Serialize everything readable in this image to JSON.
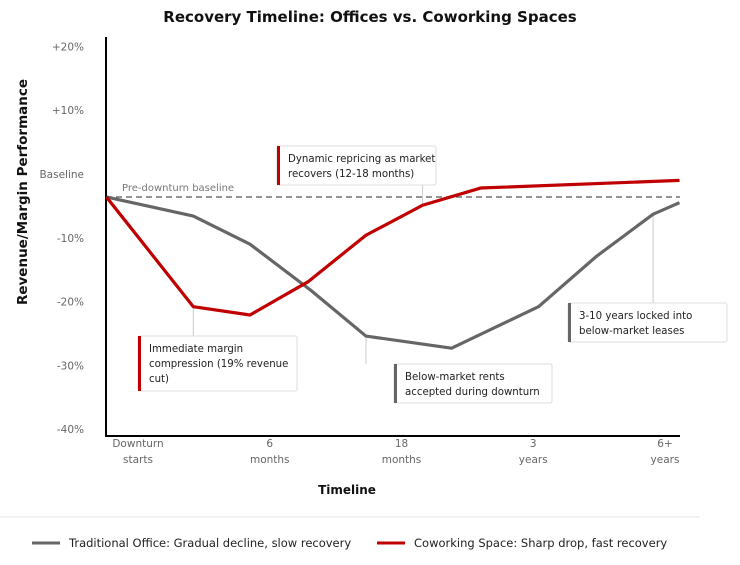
{
  "chart_data": {
    "type": "line",
    "title": "Recovery Timeline: Offices vs. Coworking Spaces",
    "xlabel": "Timeline",
    "ylabel": "Revenue/Margin Performance",
    "ylim": [
      -40,
      20
    ],
    "y_ticks": [
      {
        "value": 20,
        "label": "+20%"
      },
      {
        "value": 10,
        "label": "+10%"
      },
      {
        "value": 0,
        "label": "Baseline"
      },
      {
        "value": -10,
        "label": "-10%"
      },
      {
        "value": -20,
        "label": "-20%"
      },
      {
        "value": -30,
        "label": "-30%"
      },
      {
        "value": -40,
        "label": "-40%"
      }
    ],
    "categories": [
      [
        "Downturn",
        "starts"
      ],
      [
        "6",
        "months"
      ],
      [
        "18",
        "months"
      ],
      [
        "3",
        "years"
      ],
      [
        "6+",
        "years"
      ]
    ],
    "grid": false,
    "baseline": {
      "value": -3.6,
      "label": "Pre-downturn baseline"
    },
    "series": [
      {
        "name": "Traditional Office: Gradual decline, slow recovery",
        "color": "#666666",
        "points": [
          [
            -0.24,
            -3.6
          ],
          [
            0.42,
            -6.6
          ],
          [
            0.85,
            -11.0
          ],
          [
            1.31,
            -18.2
          ],
          [
            1.73,
            -25.4
          ],
          [
            2.38,
            -27.3
          ],
          [
            3.04,
            -20.8
          ],
          [
            3.48,
            -12.9
          ],
          [
            3.91,
            -6.3
          ],
          [
            4.11,
            -4.5
          ]
        ]
      },
      {
        "name": "Coworking Space: Sharp drop, fast recovery",
        "color": "#c00000",
        "points": [
          [
            -0.24,
            -3.6
          ],
          [
            0.42,
            -20.8
          ],
          [
            0.85,
            -22.1
          ],
          [
            1.29,
            -16.9
          ],
          [
            1.73,
            -9.6
          ],
          [
            2.16,
            -4.9
          ],
          [
            2.6,
            -2.2
          ],
          [
            4.11,
            -1.0
          ]
        ]
      }
    ],
    "annotations": [
      {
        "lines": [
          "Dynamic repricing as market",
          "recovers (12-18 months)"
        ],
        "series": 1,
        "anchor": [
          2.16,
          -4.9
        ],
        "color": "#c00000"
      },
      {
        "lines": [
          "Immediate margin",
          "compression (19% revenue",
          "cut)"
        ],
        "series": 1,
        "anchor": [
          0.42,
          -20.8
        ],
        "color": "#c00000"
      },
      {
        "lines": [
          "Below-market rents",
          "accepted during downturn"
        ],
        "series": 0,
        "anchor": [
          1.73,
          -25.4
        ],
        "color": "#666666"
      },
      {
        "lines": [
          "3-10 years locked into",
          "below-market leases"
        ],
        "series": 0,
        "anchor": [
          3.91,
          -6.3
        ],
        "color": "#666666"
      }
    ],
    "legend_position": "bottom"
  }
}
